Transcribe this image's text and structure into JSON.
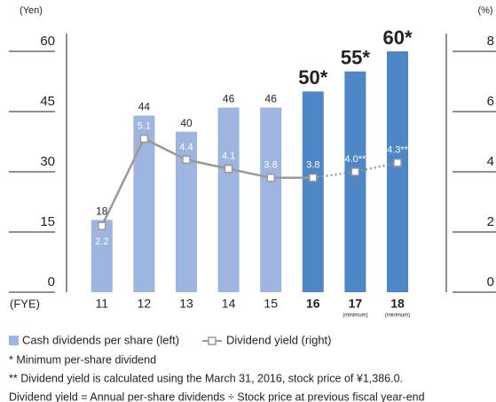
{
  "chart_data": {
    "type": "bar",
    "y_unit": "(Yen)",
    "y2_unit": "(%)",
    "x_label": "(FYE)",
    "categories": [
      "11",
      "12",
      "13",
      "14",
      "15",
      "16",
      "17",
      "18"
    ],
    "category_notes": [
      null,
      null,
      null,
      null,
      null,
      null,
      "(minimum)",
      "(minimum)"
    ],
    "ylim": [
      0,
      60
    ],
    "yticks": [
      0,
      15,
      30,
      45,
      60
    ],
    "y2lim": [
      0,
      8
    ],
    "y2ticks": [
      0,
      2,
      4,
      6,
      8
    ],
    "series": [
      {
        "name": "Cash dividends per share (left)",
        "type": "bar",
        "color": "#9db5df",
        "colors": [
          "#9db5df",
          "#9db5df",
          "#9db5df",
          "#9db5df",
          "#9db5df",
          "#4f86c6",
          "#4f86c6",
          "#4f86c6"
        ],
        "values": [
          18,
          44,
          40,
          46,
          46,
          50,
          55,
          60
        ],
        "value_labels": [
          "18",
          "44",
          "40",
          "46",
          "46",
          "50*",
          "55*",
          "60*"
        ]
      },
      {
        "name": "Dividend yield (right)",
        "type": "line",
        "axis": "y2",
        "color": "#999999",
        "dashed_after": 5,
        "label_below": [
          0
        ],
        "values": [
          2.2,
          5.1,
          4.4,
          4.1,
          3.8,
          3.8,
          4.0,
          4.3
        ],
        "value_labels": [
          "2.2",
          "5.1",
          "4.4",
          "4.1",
          "3.8",
          "3.8",
          "4.0**",
          "4.3**"
        ]
      }
    ],
    "notes": [
      "* Minimum per-share dividend",
      "** Dividend yield is calculated using the March 31, 2016, stock price of ¥1,386.0.",
      "Dividend yield = Annual per-share dividends ÷ Stock price at previous fiscal year-end"
    ]
  }
}
